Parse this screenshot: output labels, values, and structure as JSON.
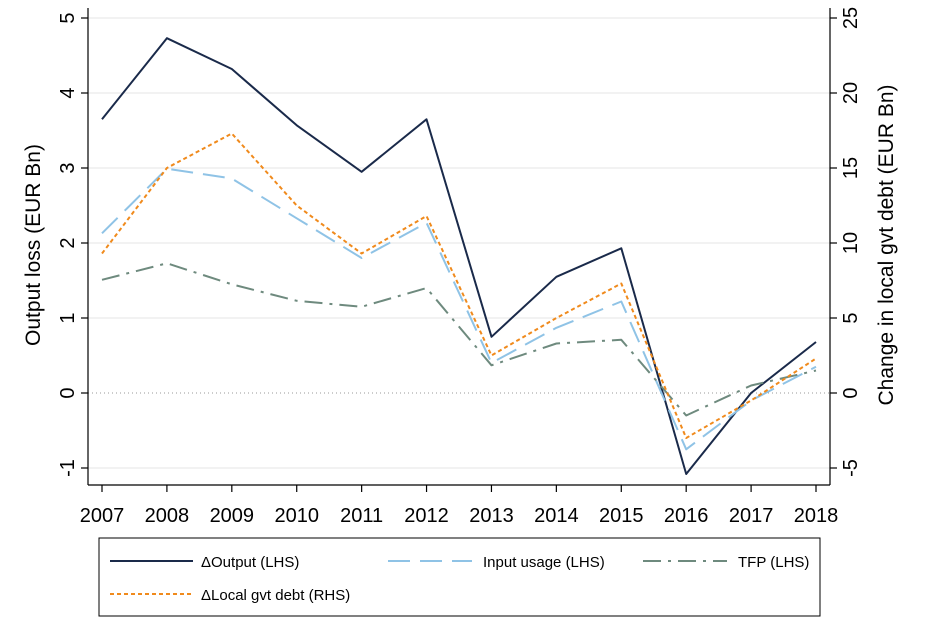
{
  "chart_data": {
    "type": "line",
    "x": [
      2007,
      2008,
      2009,
      2010,
      2011,
      2012,
      2013,
      2014,
      2015,
      2016,
      2017,
      2018
    ],
    "x_ticks": [
      "2007",
      "2008",
      "2009",
      "2010",
      "2011",
      "2012",
      "2013",
      "2014",
      "2015",
      "2016",
      "2017",
      "2018"
    ],
    "ylabel_left": "Output loss (EUR Bn)",
    "ylabel_right": "Change in local gvt debt (EUR Bn)",
    "ylim_left": [
      -1.2,
      5.2
    ],
    "ylim_right": [
      -6,
      26
    ],
    "y_ticks_left": [
      "-1",
      "0",
      "1",
      "2",
      "3",
      "4",
      "5"
    ],
    "y_ticks_right": [
      "-5",
      "0",
      "5",
      "10",
      "15",
      "20",
      "25"
    ],
    "zero_reference_line": true,
    "grid": "horizontal",
    "legend_position": "bottom",
    "series": [
      {
        "name": "ΔOutput (LHS)",
        "axis": "left",
        "color": "#1a2a4a",
        "style": "solid",
        "values": [
          3.65,
          4.73,
          4.32,
          3.57,
          2.95,
          3.65,
          0.75,
          1.55,
          1.93,
          -1.08,
          0.0,
          0.68
        ]
      },
      {
        "name": "Input usage (LHS)",
        "axis": "left",
        "color": "#8fc3e6",
        "style": "longdash",
        "values": [
          2.13,
          2.99,
          2.86,
          2.33,
          1.8,
          2.27,
          0.4,
          0.87,
          1.22,
          -0.75,
          -0.1,
          0.35
        ]
      },
      {
        "name": "TFP (LHS)",
        "axis": "left",
        "color": "#6e8a7e",
        "style": "dashdot",
        "values": [
          1.51,
          1.73,
          1.45,
          1.23,
          1.15,
          1.4,
          0.37,
          0.66,
          0.71,
          -0.3,
          0.1,
          0.3
        ]
      },
      {
        "name": "ΔLocal gvt debt (RHS)",
        "axis": "right",
        "color": "#f08a1c",
        "style": "dot",
        "values": [
          9.3,
          15.0,
          17.3,
          12.5,
          9.3,
          11.8,
          2.5,
          5.0,
          7.3,
          -3.0,
          -0.5,
          2.3
        ]
      }
    ]
  },
  "legend": {
    "items": [
      {
        "label": "ΔOutput (LHS)"
      },
      {
        "label": "Input usage (LHS)"
      },
      {
        "label": "TFP (LHS)"
      },
      {
        "label": "ΔLocal gvt debt (RHS)"
      }
    ]
  }
}
